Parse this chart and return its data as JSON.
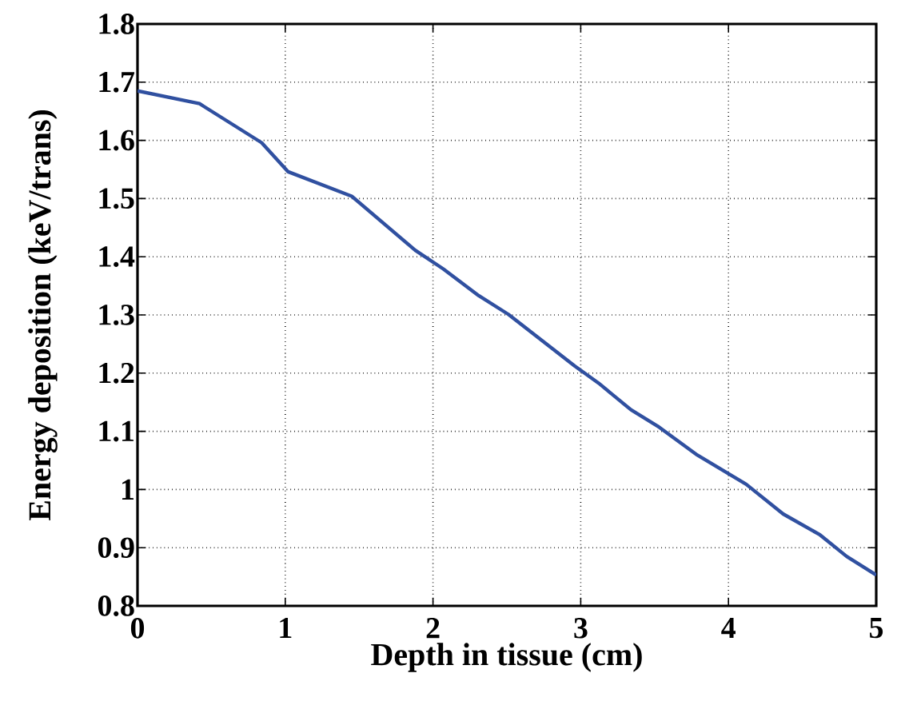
{
  "chart_data": {
    "type": "line",
    "xlabel": "Depth in tissue (cm)",
    "ylabel": "Energy deposition (keV/trans)",
    "xlim": [
      0,
      5
    ],
    "ylim": [
      0.8,
      1.8
    ],
    "xticks": [
      0,
      1,
      2,
      3,
      4,
      5
    ],
    "yticks": [
      0.8,
      0.9,
      1,
      1.1,
      1.2,
      1.3,
      1.4,
      1.5,
      1.6,
      1.7,
      1.8
    ],
    "grid": true,
    "series": [
      {
        "color": "#3050a0",
        "x": [
          0,
          0.42,
          0.84,
          1.02,
          1.45,
          1.88,
          2.07,
          2.31,
          2.51,
          2.96,
          3.12,
          3.34,
          3.52,
          3.79,
          4.12,
          4.37,
          4.62,
          4.8,
          5
        ],
        "values": [
          1.685,
          1.663,
          1.596,
          1.546,
          1.504,
          1.411,
          1.379,
          1.333,
          1.301,
          1.212,
          1.183,
          1.137,
          1.109,
          1.059,
          1.009,
          0.958,
          0.922,
          0.885,
          0.853
        ]
      }
    ]
  }
}
